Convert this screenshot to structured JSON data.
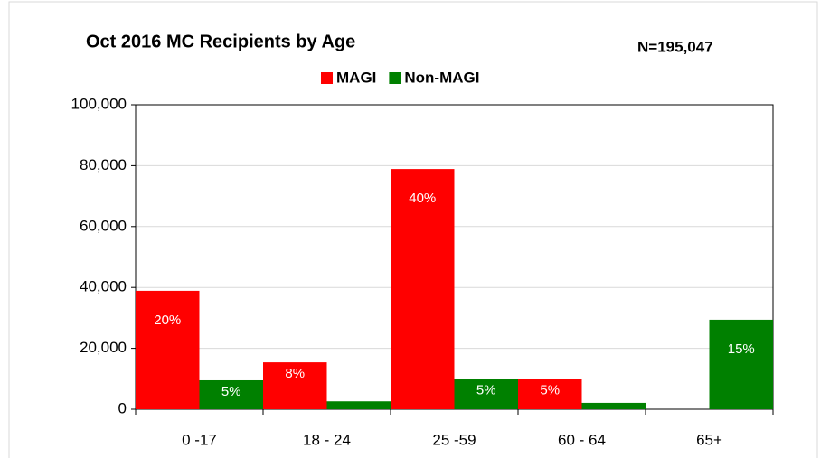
{
  "chart_data": {
    "type": "bar",
    "title": "Oct 2016 MC Recipients by Age",
    "annotation": "N=195,047",
    "categories": [
      "0 -17",
      "18 - 24",
      "25 -59",
      "60 - 64",
      "65+"
    ],
    "series": [
      {
        "name": "MAGI",
        "color": "#ff0000",
        "values": [
          38900,
          15400,
          78900,
          10000,
          0
        ],
        "value_labels": [
          "20%",
          "8%",
          "40%",
          "5%",
          null
        ]
      },
      {
        "name": "Non-MAGI",
        "color": "#008000",
        "values": [
          9500,
          2600,
          10000,
          2100,
          29400
        ],
        "value_labels": [
          "5%",
          null,
          "5%",
          null,
          "15%"
        ]
      }
    ],
    "ylim": [
      0,
      100000
    ],
    "yticks": [
      0,
      {
        "value": 20000,
        "label": "20,000"
      },
      {
        "value": 40000,
        "label": "40,000"
      },
      {
        "value": 60000,
        "label": "60,000"
      },
      {
        "value": 80000,
        "label": "80,000"
      },
      {
        "value": 100000,
        "label": "100,000"
      }
    ],
    "grid": true,
    "legend": "top"
  }
}
